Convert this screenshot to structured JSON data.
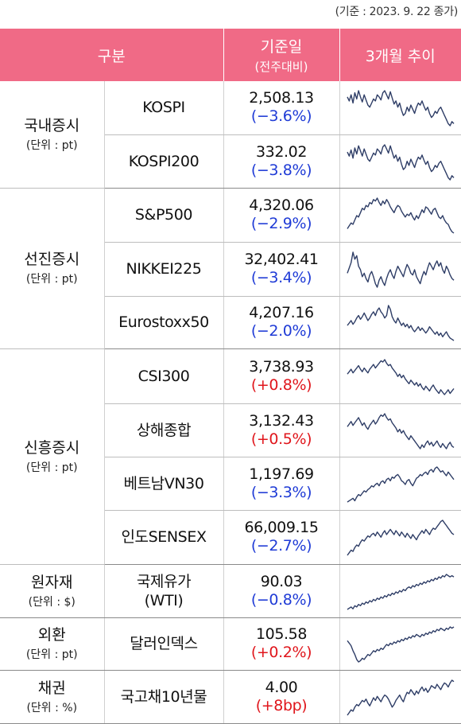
{
  "note": "(기준 : 2023. 9. 22 종가)",
  "header": {
    "category": "구분",
    "basis": "기준일",
    "basis_sub": "(전주대비)",
    "trend": "3개월 추이"
  },
  "groups": [
    {
      "name": "국내증시",
      "unit": "(단위 : pt)",
      "rows": [
        {
          "name": "KOSPI",
          "value": "2,508.13",
          "change": "(−3.6%)",
          "dir": "down",
          "trend": [
            68,
            64,
            70,
            62,
            72,
            66,
            74,
            68,
            63,
            70,
            65,
            60,
            58,
            62,
            66,
            64,
            70,
            68,
            65,
            72,
            74,
            70,
            66,
            73,
            67,
            61,
            64,
            58,
            62,
            55,
            50,
            52,
            58,
            54,
            60,
            56,
            52,
            58,
            62,
            60,
            64,
            59,
            55,
            58,
            52,
            48,
            50,
            54,
            52,
            56,
            58,
            54,
            50,
            46,
            42,
            40,
            44,
            42
          ]
        },
        {
          "name": "KOSPI200",
          "value": "332.02",
          "change": "(−3.8%)",
          "dir": "down",
          "trend": [
            66,
            62,
            68,
            60,
            70,
            64,
            72,
            67,
            62,
            69,
            64,
            59,
            57,
            61,
            65,
            63,
            69,
            67,
            64,
            71,
            73,
            69,
            65,
            72,
            66,
            60,
            63,
            57,
            61,
            54,
            49,
            51,
            57,
            53,
            59,
            55,
            51,
            57,
            61,
            59,
            63,
            58,
            54,
            57,
            51,
            47,
            49,
            53,
            51,
            55,
            57,
            53,
            49,
            45,
            41,
            39,
            43,
            41
          ]
        }
      ]
    },
    {
      "name": "선진증시",
      "unit": "(단위 : pt)",
      "rows": [
        {
          "name": "S&P500",
          "value": "4,320.06",
          "change": "(−2.9%)",
          "dir": "down",
          "trend": [
            30,
            34,
            38,
            36,
            42,
            48,
            46,
            52,
            58,
            56,
            62,
            60,
            66,
            64,
            70,
            68,
            72,
            66,
            62,
            68,
            64,
            70,
            66,
            60,
            56,
            52,
            58,
            62,
            60,
            54,
            50,
            46,
            50,
            48,
            52,
            46,
            42,
            48,
            44,
            50,
            56,
            52,
            60,
            58,
            54,
            50,
            56,
            58,
            52,
            46,
            44,
            48,
            42,
            38,
            36,
            30,
            26,
            24
          ]
        },
        {
          "name": "NIKKEI225",
          "value": "32,402.41",
          "change": "(−3.4%)",
          "dir": "down",
          "trend": [
            50,
            56,
            62,
            74,
            66,
            70,
            58,
            54,
            46,
            50,
            44,
            40,
            48,
            52,
            46,
            38,
            34,
            42,
            46,
            40,
            36,
            44,
            50,
            54,
            48,
            44,
            52,
            58,
            54,
            50,
            46,
            54,
            60,
            56,
            50,
            48,
            54,
            46,
            42,
            38,
            46,
            52,
            48,
            56,
            62,
            58,
            54,
            60,
            64,
            58,
            62,
            54,
            50,
            58,
            54,
            48,
            44,
            42
          ]
        },
        {
          "name": "Eurostoxx50",
          "value": "4,207.16",
          "change": "(−2.0%)",
          "dir": "down",
          "trend": [
            44,
            48,
            52,
            46,
            50,
            56,
            60,
            54,
            58,
            64,
            58,
            52,
            56,
            62,
            66,
            60,
            68,
            72,
            66,
            62,
            56,
            60,
            76,
            70,
            58,
            52,
            48,
            56,
            50,
            44,
            48,
            42,
            46,
            40,
            44,
            38,
            34,
            38,
            42,
            36,
            40,
            36,
            32,
            36,
            42,
            38,
            34,
            30,
            34,
            28,
            32,
            26,
            30,
            34,
            28,
            24,
            22,
            20
          ]
        }
      ]
    },
    {
      "name": "신흥증시",
      "unit": "(단위 : pt)",
      "rows": [
        {
          "name": "CSI300",
          "value": "3,738.93",
          "change": "(+0.8%)",
          "dir": "up",
          "trend": [
            50,
            54,
            58,
            52,
            56,
            60,
            64,
            58,
            54,
            60,
            56,
            52,
            58,
            62,
            66,
            60,
            64,
            68,
            72,
            70,
            74,
            68,
            64,
            66,
            60,
            56,
            52,
            46,
            50,
            44,
            48,
            42,
            38,
            34,
            40,
            36,
            32,
            36,
            30,
            34,
            28,
            24,
            30,
            26,
            22,
            28,
            32,
            26,
            22,
            18,
            24,
            20,
            16,
            20,
            24,
            18,
            22,
            26
          ]
        },
        {
          "name": "상해종합",
          "value": "3,132.43",
          "change": "(+0.5%)",
          "dir": "up",
          "trend": [
            56,
            60,
            64,
            58,
            62,
            66,
            70,
            64,
            58,
            62,
            56,
            52,
            58,
            62,
            66,
            60,
            64,
            70,
            74,
            72,
            76,
            70,
            66,
            68,
            62,
            58,
            54,
            48,
            52,
            46,
            50,
            44,
            40,
            36,
            42,
            38,
            34,
            30,
            26,
            22,
            28,
            24,
            30,
            34,
            28,
            32,
            26,
            30,
            34,
            28,
            24,
            30,
            26,
            22,
            28,
            32,
            26,
            24
          ]
        },
        {
          "name": "베트남VN30",
          "value": "1,197.69",
          "change": "(−3.3%)",
          "dir": "down",
          "trend": [
            18,
            20,
            22,
            24,
            20,
            26,
            30,
            28,
            32,
            36,
            34,
            38,
            40,
            44,
            42,
            46,
            48,
            44,
            50,
            52,
            48,
            54,
            56,
            52,
            58,
            56,
            60,
            62,
            58,
            52,
            50,
            46,
            52,
            54,
            48,
            44,
            50,
            56,
            58,
            62,
            60,
            64,
            66,
            62,
            68,
            70,
            66,
            72,
            74,
            70,
            66,
            68,
            64,
            60,
            66,
            62,
            58,
            54
          ]
        },
        {
          "name": "인도SENSEX",
          "value": "66,009.15",
          "change": "(−2.7%)",
          "dir": "down",
          "trend": [
            20,
            24,
            28,
            26,
            32,
            36,
            34,
            40,
            44,
            42,
            46,
            50,
            48,
            52,
            54,
            50,
            56,
            52,
            48,
            54,
            58,
            52,
            56,
            60,
            56,
            52,
            58,
            54,
            50,
            56,
            52,
            48,
            54,
            50,
            46,
            52,
            48,
            44,
            50,
            54,
            58,
            54,
            60,
            56,
            52,
            58,
            62,
            60,
            64,
            68,
            72,
            74,
            70,
            66,
            62,
            58,
            54,
            52
          ]
        }
      ]
    },
    {
      "name": "원자재",
      "unit": "(단위 : $)",
      "rows": [
        {
          "name": "국제유가 (WTI)",
          "value": "90.03",
          "change": "(−0.8%)",
          "dir": "down",
          "trend": [
            18,
            20,
            22,
            19,
            24,
            22,
            26,
            24,
            28,
            26,
            30,
            28,
            32,
            30,
            34,
            32,
            36,
            34,
            38,
            36,
            40,
            38,
            42,
            40,
            44,
            42,
            46,
            44,
            48,
            46,
            50,
            48,
            52,
            54,
            52,
            56,
            54,
            58,
            56,
            60,
            58,
            62,
            60,
            64,
            62,
            66,
            64,
            68,
            66,
            70,
            68,
            72,
            70,
            74,
            72,
            70,
            72,
            70
          ]
        }
      ]
    },
    {
      "name": "외환",
      "unit": "(단위 : pt)",
      "rows": [
        {
          "name": "달러인덱스",
          "value": "105.58",
          "change": "(+0.2%)",
          "dir": "up",
          "trend": [
            56,
            52,
            48,
            40,
            34,
            26,
            22,
            24,
            28,
            26,
            30,
            34,
            32,
            36,
            40,
            38,
            42,
            40,
            44,
            42,
            46,
            50,
            48,
            52,
            50,
            54,
            52,
            56,
            54,
            58,
            56,
            60,
            58,
            62,
            60,
            64,
            62,
            66,
            64,
            62,
            66,
            64,
            68,
            66,
            70,
            68,
            72,
            70,
            74,
            72,
            76,
            74,
            72,
            76,
            74,
            78,
            76,
            78
          ]
        }
      ]
    },
    {
      "name": "채권",
      "unit": "(단위 : %)",
      "rows": [
        {
          "name": "국고채10년물",
          "value": "4.00",
          "change": "(+8bp)",
          "dir": "up",
          "trend": [
            22,
            26,
            30,
            28,
            34,
            38,
            36,
            40,
            44,
            42,
            46,
            40,
            36,
            42,
            48,
            44,
            50,
            46,
            42,
            48,
            52,
            50,
            46,
            40,
            34,
            38,
            44,
            48,
            52,
            46,
            42,
            50,
            56,
            54,
            60,
            56,
            52,
            58,
            54,
            60,
            64,
            58,
            62,
            56,
            60,
            66,
            64,
            62,
            68,
            64,
            60,
            66,
            70,
            68,
            64,
            70,
            74,
            72
          ]
        }
      ]
    }
  ]
}
